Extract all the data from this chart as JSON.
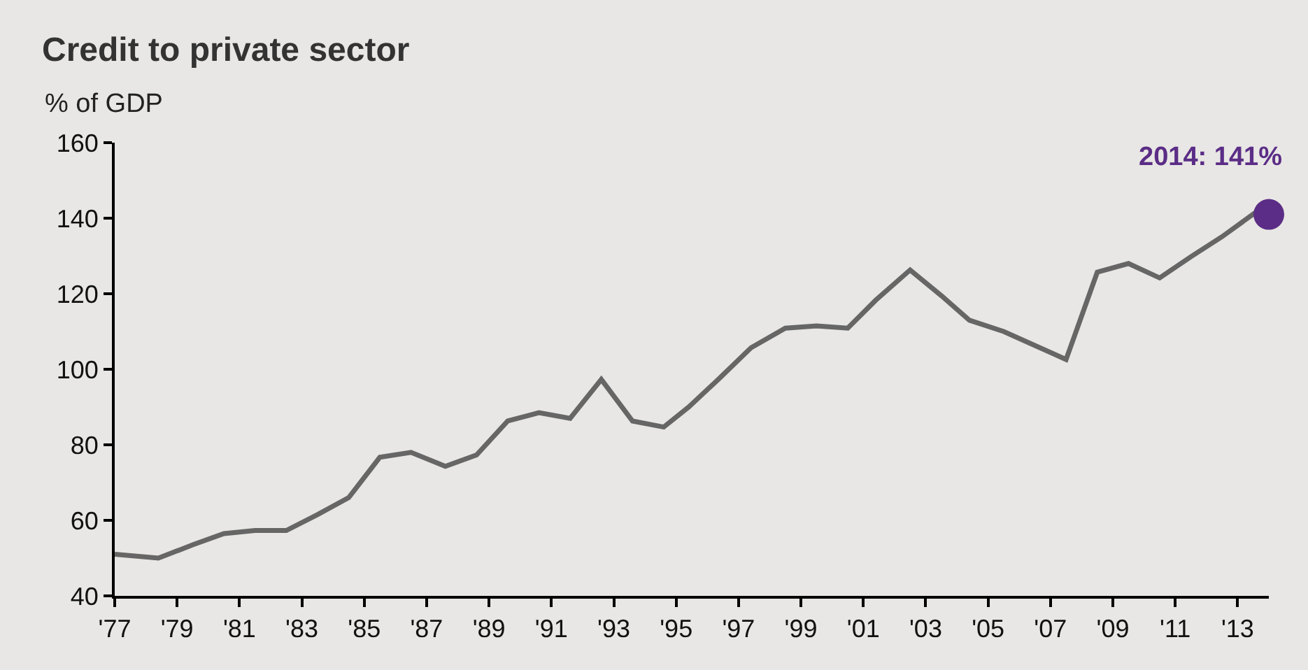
{
  "chart_data": {
    "type": "line",
    "title": "Credit to private sector",
    "subtitle": "% of GDP",
    "series": [
      {
        "color": "#666666",
        "marker": "none",
        "x": [
          1977,
          1978.4,
          1979.5,
          1980.5,
          1981.5,
          1982.5,
          1983.5,
          1984.5,
          1985.5,
          1986.5,
          1987.6,
          1988.6,
          1989.6,
          1990.6,
          1991.6,
          1992.6,
          1993.6,
          1994.6,
          1995.4,
          1996.4,
          1997.4,
          1998.5,
          1999.5,
          2000.5,
          2001.4,
          2002.5,
          2003.5,
          2004.4,
          2005.5,
          2006.5,
          2007.5,
          2008.5,
          2009.5,
          2010.5,
          2011.5,
          2012.5,
          2013.6
        ],
        "values": [
          51,
          50,
          53.5,
          56.5,
          57.3,
          57.3,
          61.5,
          66,
          76.7,
          78,
          74.3,
          77.3,
          86.3,
          88.5,
          87,
          97.3,
          86.3,
          84.7,
          90,
          97.7,
          105.7,
          110.9,
          111.5,
          110.9,
          118.3,
          126.3,
          119.5,
          113,
          110,
          106.3,
          102.6,
          125.7,
          128,
          124.2,
          129.8,
          135.1,
          141.7
        ]
      },
      {
        "type": "scatter",
        "marker": "circle",
        "color": "#5b2d86",
        "x": [
          2014
        ],
        "values": [
          141
        ]
      }
    ],
    "annotations": [
      {
        "text": "2014: 141%",
        "x": 2014,
        "y": 141
      }
    ],
    "xlim": [
      1977,
      2014
    ],
    "xticks": [
      {
        "value": 1977,
        "label": "'77"
      },
      {
        "value": 1979,
        "label": "'79"
      },
      {
        "value": 1981,
        "label": "'81"
      },
      {
        "value": 1983,
        "label": "'83"
      },
      {
        "value": 1985,
        "label": "'85"
      },
      {
        "value": 1987,
        "label": "'87"
      },
      {
        "value": 1989,
        "label": "'89"
      },
      {
        "value": 1991,
        "label": "'91"
      },
      {
        "value": 1993,
        "label": "'93"
      },
      {
        "value": 1995,
        "label": "'95"
      },
      {
        "value": 1997,
        "label": "'97"
      },
      {
        "value": 1999,
        "label": "'99"
      },
      {
        "value": 2001,
        "label": "'01"
      },
      {
        "value": 2003,
        "label": "'03"
      },
      {
        "value": 2005,
        "label": "'05"
      },
      {
        "value": 2007,
        "label": "'07"
      },
      {
        "value": 2009,
        "label": "'09"
      },
      {
        "value": 2011,
        "label": "'11"
      },
      {
        "value": 2013,
        "label": "'13"
      }
    ],
    "ylim": [
      40,
      160
    ],
    "yticks": [
      40,
      60,
      80,
      100,
      120,
      140,
      160
    ],
    "line_style": "solid",
    "grid": false,
    "legend": false
  }
}
